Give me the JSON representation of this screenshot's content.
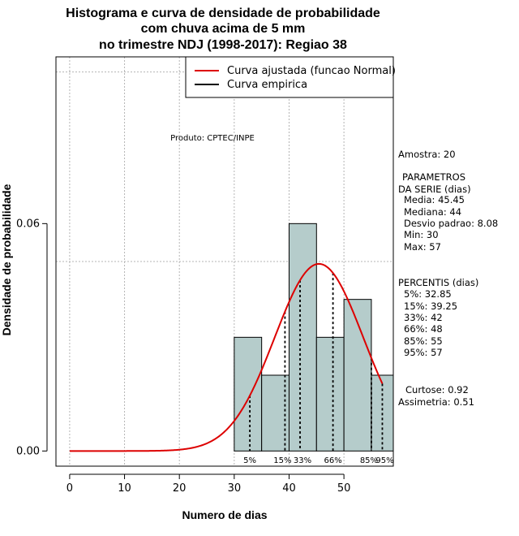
{
  "chart_data": {
    "type": "bar",
    "title_lines": [
      "Histograma e curva de densidade de probabilidade",
      "com chuva acima de 5 mm",
      "no trimestre NDJ (1998-2017): Regiao 38"
    ],
    "xlabel": "Numero de dias",
    "ylabel": "Densidade de probabilidade",
    "xlim": [
      -2.5,
      59
    ],
    "ylim": [
      -0.004,
      0.104
    ],
    "x_ticks": [
      0,
      10,
      20,
      30,
      40,
      50
    ],
    "y_ticks": [
      0.0,
      0.06
    ],
    "y_tick_labels": [
      "0.00",
      "0.06"
    ],
    "grid_x": [
      0,
      10,
      20,
      30,
      40,
      50
    ],
    "grid_y": [
      0.05,
      0.1
    ],
    "bins": [
      {
        "x0": 30,
        "x1": 35,
        "density": 0.03
      },
      {
        "x0": 35,
        "x1": 40,
        "density": 0.02
      },
      {
        "x0": 40,
        "x1": 45,
        "density": 0.06
      },
      {
        "x0": 45,
        "x1": 50,
        "density": 0.03
      },
      {
        "x0": 50,
        "x1": 55,
        "density": 0.04
      },
      {
        "x0": 55,
        "x1": 60,
        "density": 0.02
      }
    ],
    "bar_color": "#b5cccb",
    "normal_curve": {
      "mean": 45.45,
      "sd": 8.08,
      "x_from": 0,
      "x_to": 57,
      "color": "#dd0000"
    },
    "percentile_lines": [
      {
        "label": "5%",
        "x": 32.85
      },
      {
        "label": "15%",
        "x": 39.25
      },
      {
        "label": "33%",
        "x": 42
      },
      {
        "label": "66%",
        "x": 48
      },
      {
        "label": "85%",
        "x": 55
      },
      {
        "label": "95%",
        "x": 57
      }
    ],
    "legend": {
      "placement": "top-right",
      "entries": [
        {
          "label": "Curva ajustada (funcao Normal)",
          "color": "#dd0000"
        },
        {
          "label": "Curva empirica",
          "color": "#000000"
        }
      ]
    },
    "annotation": "Produto: CPTEC/INPE"
  },
  "side_panel": {
    "amostra": "Amostra: 20",
    "parametros_title_1": "PARAMETROS",
    "parametros_title_2": "DA SERIE (dias)",
    "media": "Media: 45.45",
    "mediana": "Mediana: 44",
    "desvio": "Desvio padrao: 8.08",
    "min": "Min: 30",
    "max": "Max: 57",
    "percentis_title": "PERCENTIS (dias)",
    "p5": "5%: 32.85",
    "p15": "15%: 39.25",
    "p33": "33%: 42",
    "p66": "66%: 48",
    "p85": "85%: 55",
    "p95": "95%: 57",
    "curtose": "Curtose: 0.92",
    "assimetria": "Assimetria: 0.51"
  }
}
